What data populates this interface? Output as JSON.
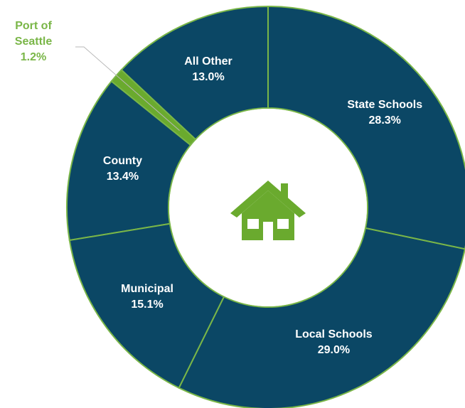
{
  "chart_data": {
    "type": "donut",
    "categories": [
      "State Schools",
      "Local Schools",
      "Municipal",
      "County",
      "Port of Seattle",
      "All Other"
    ],
    "values": [
      28.3,
      29.0,
      15.1,
      13.4,
      1.2,
      13.0
    ],
    "value_labels": [
      "28.3%",
      "29.0%",
      "15.1%",
      "13.4%",
      "1.2%",
      "13.0%"
    ],
    "colors": [
      "#0b4765",
      "#0b4765",
      "#0b4765",
      "#0b4765",
      "#6aaa2e",
      "#0b4765"
    ]
  }
}
